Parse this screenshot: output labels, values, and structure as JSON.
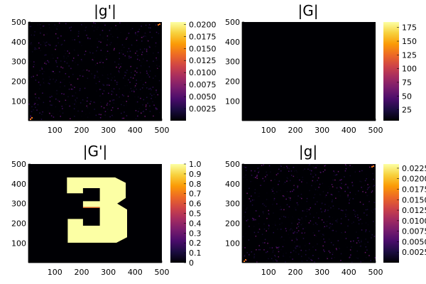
{
  "chart_data": [
    {
      "type": "heatmap",
      "title": "|g'|",
      "pattern": "noise",
      "xlim": [
        1,
        500
      ],
      "ylim": [
        1,
        500
      ],
      "xticks": [
        "100",
        "200",
        "300",
        "400",
        "500"
      ],
      "yticks": [
        "100",
        "200",
        "300",
        "400",
        "500"
      ],
      "colorbar": {
        "range": [
          0,
          0.0205
        ],
        "ticks": [
          "0.0025",
          "0.0050",
          "0.0075",
          "0.0100",
          "0.0125",
          "0.0150",
          "0.0175",
          "0.0200"
        ]
      }
    },
    {
      "type": "heatmap",
      "title": "|G|",
      "pattern": "near-zero",
      "xlim": [
        1,
        500
      ],
      "ylim": [
        1,
        500
      ],
      "xticks": [
        "100",
        "200",
        "300",
        "400",
        "500"
      ],
      "yticks": [
        "100",
        "200",
        "300",
        "400",
        "500"
      ],
      "colorbar": {
        "range": [
          5,
          185
        ],
        "ticks": [
          "25",
          "50",
          "75",
          "100",
          "125",
          "150",
          "175"
        ]
      }
    },
    {
      "type": "heatmap",
      "title": "|G'|",
      "pattern": "digit-3",
      "xlim": [
        1,
        500
      ],
      "ylim": [
        1,
        500
      ],
      "xticks": [
        "100",
        "200",
        "300",
        "400",
        "500"
      ],
      "yticks": [
        "100",
        "200",
        "300",
        "400",
        "500"
      ],
      "colorbar": {
        "range": [
          0,
          1
        ],
        "ticks": [
          "0",
          "0.1",
          "0.2",
          "0.3",
          "0.4",
          "0.5",
          "0.6",
          "0.7",
          "0.8",
          "0.9",
          "1.0"
        ]
      }
    },
    {
      "type": "heatmap",
      "title": "|g|",
      "pattern": "noise",
      "xlim": [
        1,
        500
      ],
      "ylim": [
        1,
        500
      ],
      "xticks": [
        "100",
        "200",
        "300",
        "400",
        "500"
      ],
      "yticks": [
        "100",
        "200",
        "300",
        "400",
        "500"
      ],
      "colorbar": {
        "range": [
          0,
          0.0235
        ],
        "ticks": [
          "0.0025",
          "0.0050",
          "0.0075",
          "0.0100",
          "0.0125",
          "0.0150",
          "0.0175",
          "0.0200",
          "0.0225"
        ]
      }
    }
  ],
  "colormap": [
    "#000004",
    "#1b0c41",
    "#4a0c6b",
    "#781c6d",
    "#a52c60",
    "#cf4446",
    "#ed6925",
    "#fb9b06",
    "#f7d13d",
    "#fcffa4"
  ]
}
